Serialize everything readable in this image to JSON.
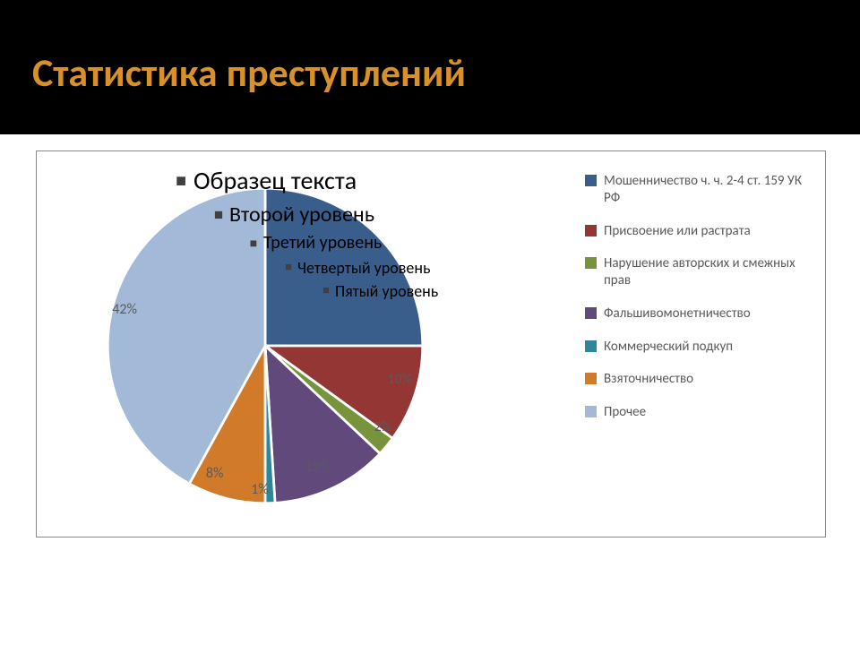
{
  "title": "Статистика преступлений",
  "title_color": "#d89028",
  "title_bg": "#000000",
  "title_fontsize": 44,
  "placeholder": {
    "lvl1": "Образец текста",
    "lvl2": "Второй уровень",
    "lvl3": "Третий уровень",
    "lvl4": "Четвертый уровень",
    "lvl5": "Пятый уровень",
    "bullets": [
      "■",
      "■",
      "■",
      "■",
      "■"
    ],
    "text_color": "#000000"
  },
  "chart": {
    "type": "pie",
    "background_color": "#ffffff",
    "border_color": "#888888",
    "slice_border_color": "#ffffff",
    "slice_border_width": 1.5,
    "label_color": "#5a5a5a",
    "label_fontsize": 16,
    "legend": {
      "position": "right",
      "fontsize": 15,
      "text_color": "#5a5a5a",
      "swatch_size": 13
    },
    "start_angle_deg": -90,
    "direction": "clockwise",
    "slices": [
      {
        "label": "Мошенничество ч. ч. 2-4 ст. 159 УК РФ",
        "value": 25,
        "color": "#3a5e8c",
        "show_label": false
      },
      {
        "label": "Присвоение или растрата",
        "value": 10,
        "color": "#933634",
        "show_label": true
      },
      {
        "label": "Нарушение авторских и смежных прав",
        "value": 2,
        "color": "#77933c",
        "show_label": true
      },
      {
        "label": "Фальшивомонетничество",
        "value": 12,
        "color": "#61497b",
        "show_label": true
      },
      {
        "label": "Коммерческий подкуп",
        "value": 1,
        "color": "#2f859a",
        "show_label": true
      },
      {
        "label": "Взяточничество",
        "value": 8,
        "color": "#d17b2a",
        "show_label": true
      },
      {
        "label": "Прочее",
        "value": 42,
        "color": "#a3b9d8",
        "show_label": true
      }
    ],
    "label_offsets": {
      "0": [
        0,
        0
      ],
      "1": [
        20,
        -4
      ],
      "2": [
        30,
        4
      ],
      "3": [
        0,
        12
      ],
      "4": [
        -6,
        24
      ],
      "5": [
        -18,
        10
      ],
      "6": [
        -24,
        -6
      ]
    }
  }
}
